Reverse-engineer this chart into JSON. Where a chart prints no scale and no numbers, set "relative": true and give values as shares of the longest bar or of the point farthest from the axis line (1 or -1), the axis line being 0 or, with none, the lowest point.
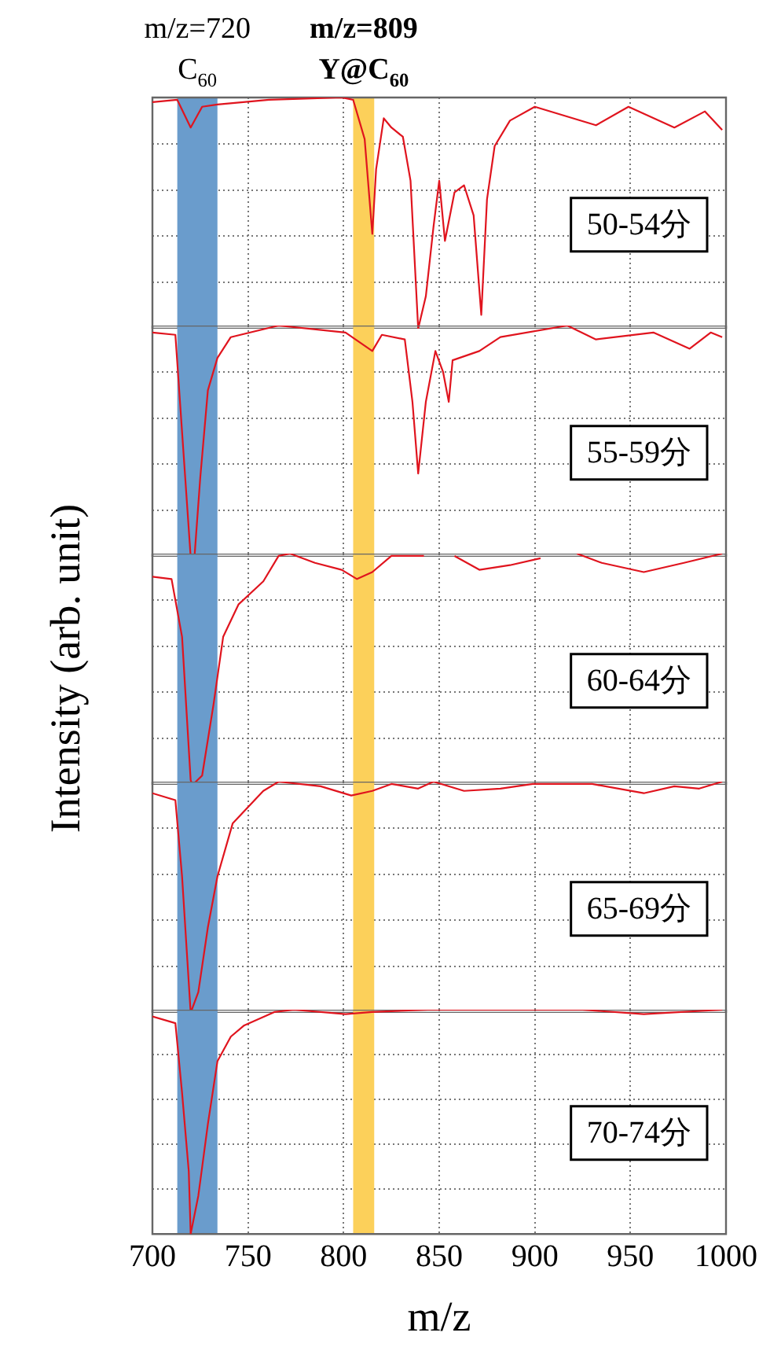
{
  "chart_data": [
    {
      "type": "line",
      "relative": true,
      "legend": false,
      "grid": true,
      "marker": "none",
      "tick_labels": false,
      "xlim": [
        700,
        1000
      ],
      "xticks": [
        700,
        750,
        800,
        850,
        900,
        950,
        1000
      ],
      "bands": [
        {
          "axis": "x",
          "from": 713,
          "to": 734,
          "label": "m/z=720\nC$_{60}$",
          "color": "#6a9ccc"
        },
        {
          "axis": "x",
          "from": 805,
          "to": 816,
          "label": "m/z=809\nY@C$_{60}$",
          "color": "#fcd05a"
        }
      ],
      "annotations": [
        "50-54分"
      ],
      "series": [
        {
          "color": "#e0141e",
          "x": [
            700,
            713,
            720,
            726,
            734,
            761,
            799,
            805,
            811,
            815,
            817,
            821,
            825,
            831,
            835,
            839,
            843,
            847,
            850,
            853,
            858,
            863,
            868,
            872,
            875,
            879,
            887,
            900,
            932,
            949,
            973,
            989,
            998
          ],
          "values": [
            0.98,
            0.99,
            0.87,
            0.96,
            0.97,
            0.99,
            1.0,
            0.99,
            0.82,
            0.41,
            0.69,
            0.91,
            0.87,
            0.83,
            0.64,
            0,
            0.14,
            0.44,
            0.64,
            0.38,
            0.59,
            0.62,
            0.49,
            0.06,
            0.56,
            0.79,
            0.9,
            0.96,
            0.88,
            0.96,
            0.87,
            0.94,
            0.86
          ]
        }
      ]
    },
    {
      "type": "line",
      "relative": true,
      "legend": false,
      "grid": true,
      "marker": "none",
      "tick_labels": false,
      "xlim": [
        700,
        1000
      ],
      "xticks": [
        700,
        750,
        800,
        850,
        900,
        950,
        1000
      ],
      "bands": [
        {
          "axis": "x",
          "from": 713,
          "to": 734,
          "color": "#6a9ccc"
        },
        {
          "axis": "x",
          "from": 805,
          "to": 816,
          "color": "#fcd05a"
        }
      ],
      "annotations": [
        "55-59分"
      ],
      "series": [
        {
          "color": "#e0141e",
          "x": [
            700,
            712,
            715.5,
            720,
            722,
            725,
            729,
            734,
            741,
            766,
            801,
            815,
            820,
            832,
            836,
            839,
            843,
            848,
            852,
            855,
            857,
            871,
            882,
            917,
            932,
            962,
            981,
            992,
            998
          ],
          "values": [
            0.97,
            0.96,
            0.54,
            0,
            0,
            0.34,
            0.72,
            0.86,
            0.95,
            1.0,
            0.97,
            0.89,
            0.96,
            0.94,
            0.67,
            0.36,
            0.67,
            0.89,
            0.8,
            0.67,
            0.85,
            0.89,
            0.95,
            1.0,
            0.94,
            0.97,
            0.9,
            0.97,
            0.95
          ]
        }
      ]
    },
    {
      "type": "line",
      "relative": true,
      "legend": false,
      "grid": true,
      "marker": "none",
      "tick_labels": false,
      "xlim": [
        700,
        1000
      ],
      "xticks": [
        700,
        750,
        800,
        850,
        900,
        950,
        1000
      ],
      "ylabel": "Intensity (arb. unit)",
      "bands": [
        {
          "axis": "x",
          "from": 713,
          "to": 734,
          "color": "#6a9ccc"
        },
        {
          "axis": "x",
          "from": 805,
          "to": 816,
          "color": "#fcd05a"
        }
      ],
      "annotations": [
        "60-64分"
      ],
      "series": [
        {
          "color": "#e0141e",
          "x": [
            700,
            710,
            715.5,
            720,
            721,
            726,
            732,
            737,
            745,
            758,
            766,
            772,
            785,
            799,
            807,
            815,
            825,
            842,
            850,
            858,
            871,
            887,
            903,
            912,
            922,
            935,
            957,
            978,
            998
          ],
          "values": [
            0.9,
            0.89,
            0.64,
            0.02,
            0,
            0.04,
            0.35,
            0.64,
            0.78,
            0.88,
            0.99,
            1.0,
            0.96,
            0.93,
            0.89,
            0.92,
            0.99,
            0.99,
            null,
            0.99,
            0.93,
            0.95,
            0.98,
            null,
            1.0,
            0.96,
            0.92,
            0.96,
            1.0
          ]
        }
      ]
    },
    {
      "type": "line",
      "relative": true,
      "legend": false,
      "grid": true,
      "marker": "none",
      "tick_labels": false,
      "xlim": [
        700,
        1000
      ],
      "xticks": [
        700,
        750,
        800,
        850,
        900,
        950,
        1000
      ],
      "bands": [
        {
          "axis": "x",
          "from": 713,
          "to": 734,
          "color": "#6a9ccc"
        },
        {
          "axis": "x",
          "from": 805,
          "to": 816,
          "color": "#fcd05a"
        }
      ],
      "annotations": [
        "65-69分"
      ],
      "series": [
        {
          "color": "#e0141e",
          "x": [
            700,
            712,
            715.5,
            720,
            724,
            729,
            734,
            742,
            758,
            766,
            788,
            804,
            815,
            825,
            839,
            847,
            863,
            882,
            899,
            930,
            957,
            973,
            986,
            998
          ],
          "values": [
            0.95,
            0.92,
            0.59,
            0,
            0.09,
            0.37,
            0.59,
            0.82,
            0.96,
            1.0,
            0.98,
            0.94,
            0.96,
            0.99,
            0.97,
            1.0,
            0.96,
            0.97,
            0.99,
            0.99,
            0.95,
            0.98,
            0.97,
            1.0
          ]
        }
      ]
    },
    {
      "type": "line",
      "relative": true,
      "legend": false,
      "grid": true,
      "marker": "none",
      "tick_labels": "x",
      "xlim": [
        700,
        1000
      ],
      "xticks": [
        700,
        750,
        800,
        850,
        900,
        950,
        1000
      ],
      "xlabel": "m/z",
      "bands": [
        {
          "axis": "x",
          "from": 713,
          "to": 734,
          "color": "#6a9ccc"
        },
        {
          "axis": "x",
          "from": 805,
          "to": 816,
          "color": "#fcd05a"
        }
      ],
      "annotations": [
        "70-74分"
      ],
      "series": [
        {
          "color": "#e0141e",
          "x": [
            700,
            712,
            715.5,
            719,
            720,
            724,
            729,
            734,
            741,
            748,
            764,
            774,
            801,
            815,
            844,
            882,
            925,
            957,
            998
          ],
          "values": [
            0.97,
            0.94,
            0.63,
            0.28,
            0,
            0.17,
            0.49,
            0.77,
            0.88,
            0.93,
            0.99,
            1.0,
            0.98,
            0.99,
            1.0,
            1.0,
            1.0,
            0.98,
            1.0
          ]
        }
      ]
    }
  ]
}
